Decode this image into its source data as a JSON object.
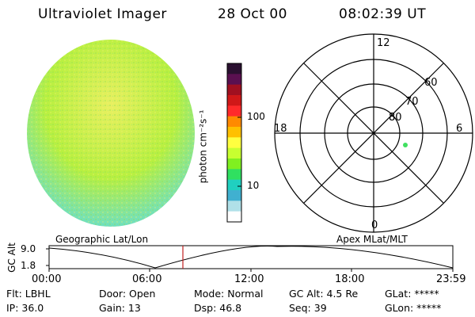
{
  "header": {
    "instrument": "Ultraviolet Imager",
    "date": "28 Oct 00",
    "time": "08:02:39 UT"
  },
  "colorbar": {
    "unit_label": "photon cm⁻²s⁻¹",
    "tick_labels": [
      "100",
      "10"
    ],
    "colors": [
      "#2a1030",
      "#5a1050",
      "#a01020",
      "#d01818",
      "#ff2a2a",
      "#ff8a00",
      "#ffc000",
      "#ffff40",
      "#c8ff30",
      "#80f020",
      "#30e060",
      "#20d0c0",
      "#40b0d0",
      "#b0e0e8",
      "#ffffff"
    ]
  },
  "polar_plot": {
    "clock_labels": [
      "12",
      "18",
      "6",
      "0"
    ],
    "ring_labels": [
      "60",
      "70",
      "80"
    ],
    "point_color": "#40e060"
  },
  "timeline": {
    "left_title": "Geographic Lat/Lon",
    "right_title": "Apex MLat/MLT",
    "axis_label": "GC Alt",
    "y_ticks": [
      "9.0",
      "1.8"
    ],
    "x_ticks": [
      "00:00",
      "06:00",
      "12:00",
      "18:00",
      "23:59"
    ],
    "marker_color": "#c02020"
  },
  "info": {
    "flt": "Flt: LBHL",
    "ip": "IP: 36.0",
    "door": "Door: Open",
    "gain": "Gain: 13",
    "mode": "Mode: Normal",
    "dsp": "Dsp:   46.8",
    "gcalt": "GC Alt: 4.5 Re",
    "seq": "Seq: 39",
    "glat": "GLat: *****",
    "glon": "GLon: *****"
  },
  "image_colors": {
    "base": "#b8f040",
    "top": "#e8f060",
    "edge": "#70e0c0"
  }
}
